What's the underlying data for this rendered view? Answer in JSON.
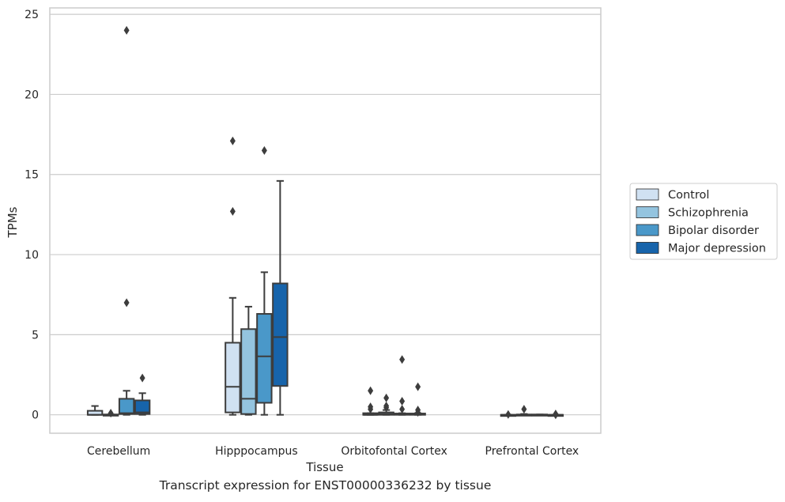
{
  "caption": "Transcript expression for ENST00000336232 by tissue",
  "chart_data": {
    "type": "box",
    "xlabel": "Tissue",
    "ylabel": "TPMs",
    "ylim": [
      -1.15,
      25.4
    ],
    "yticks": [
      0,
      5,
      10,
      15,
      20,
      25
    ],
    "grid": true,
    "legend_position": "right",
    "categories": [
      "Cerebellum",
      "Hipppocampus",
      "Orbitofontal Cortex",
      "Prefrontal Cortex"
    ],
    "series": [
      {
        "name": "Control",
        "color": "#d0e1f2",
        "boxes": [
          {
            "min": 0.0,
            "q1": 0.0,
            "median": 0.0,
            "q3": 0.25,
            "max": 0.55,
            "outliers": []
          },
          {
            "min": 0.0,
            "q1": 0.15,
            "median": 1.75,
            "q3": 4.5,
            "max": 7.3,
            "outliers": [
              12.7,
              17.1
            ]
          },
          {
            "min": 0.0,
            "q1": 0.0,
            "median": 0.0,
            "q3": 0.1,
            "max": 0.1,
            "outliers": [
              0.35,
              0.5,
              1.5
            ]
          },
          {
            "min": 0.0,
            "q1": 0.0,
            "median": 0.0,
            "q3": 0.0,
            "max": 0.0,
            "outliers": [
              0.02
            ]
          }
        ]
      },
      {
        "name": "Schizophrenia",
        "color": "#94c4df",
        "boxes": [
          {
            "min": 0.0,
            "q1": 0.0,
            "median": 0.0,
            "q3": 0.02,
            "max": 0.02,
            "outliers": [
              0.1
            ]
          },
          {
            "min": 0.0,
            "q1": 0.05,
            "median": 1.0,
            "q3": 5.35,
            "max": 6.75,
            "outliers": []
          },
          {
            "min": 0.0,
            "q1": 0.0,
            "median": 0.05,
            "q3": 0.15,
            "max": 0.3,
            "outliers": [
              0.45,
              0.55,
              1.05
            ]
          },
          {
            "min": 0.0,
            "q1": 0.0,
            "median": 0.0,
            "q3": 0.02,
            "max": 0.05,
            "outliers": [
              0.35
            ]
          }
        ]
      },
      {
        "name": "Bipolar disorder",
        "color": "#4a98c9",
        "boxes": [
          {
            "min": 0.0,
            "q1": 0.05,
            "median": 0.1,
            "q3": 1.0,
            "max": 1.5,
            "outliers": [
              7.0,
              24.0
            ]
          },
          {
            "min": 0.0,
            "q1": 0.75,
            "median": 3.65,
            "q3": 6.3,
            "max": 8.9,
            "outliers": [
              16.5
            ]
          },
          {
            "min": 0.0,
            "q1": 0.0,
            "median": 0.02,
            "q3": 0.08,
            "max": 0.1,
            "outliers": [
              0.35,
              0.85,
              3.45
            ]
          },
          {
            "min": 0.0,
            "q1": 0.0,
            "median": 0.0,
            "q3": 0.02,
            "max": 0.02,
            "outliers": []
          }
        ]
      },
      {
        "name": "Major depression",
        "color": "#1764ab",
        "boxes": [
          {
            "min": 0.0,
            "q1": 0.05,
            "median": 0.15,
            "q3": 0.9,
            "max": 1.35,
            "outliers": [
              2.3
            ]
          },
          {
            "min": 0.0,
            "q1": 1.8,
            "median": 4.85,
            "q3": 8.2,
            "max": 14.6,
            "outliers": []
          },
          {
            "min": 0.0,
            "q1": 0.0,
            "median": 0.02,
            "q3": 0.08,
            "max": 0.1,
            "outliers": [
              0.15,
              0.3,
              1.75
            ]
          },
          {
            "min": 0.0,
            "q1": 0.0,
            "median": 0.0,
            "q3": 0.0,
            "max": 0.0,
            "outliers": [
              0.0,
              0.05
            ]
          }
        ]
      }
    ]
  }
}
